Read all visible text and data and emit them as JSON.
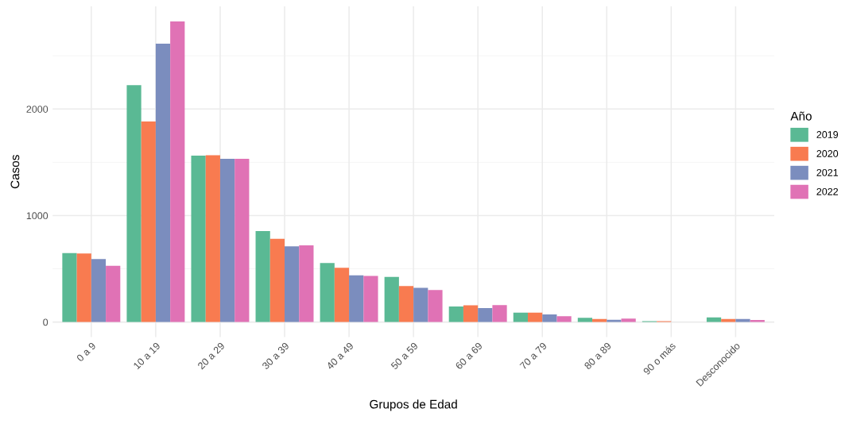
{
  "chart_data": {
    "type": "bar",
    "xlabel": "Grupos de Edad",
    "ylabel": "Casos",
    "legend_title": "Año",
    "categories": [
      "0 a 9",
      "10 a 19",
      "20 a 29",
      "30 a 39",
      "40 a 49",
      "50 a 59",
      "60 a 69",
      "70 a 79",
      "80 a 89",
      "90 o más",
      "Desconocido"
    ],
    "series": [
      {
        "name": "2019",
        "color": "#5ab994",
        "values": [
          648,
          2224,
          1562,
          854,
          554,
          423,
          146,
          89,
          40,
          9,
          44
        ]
      },
      {
        "name": "2020",
        "color": "#f87b50",
        "values": [
          643,
          1884,
          1567,
          782,
          510,
          339,
          157,
          89,
          29,
          8,
          29
        ]
      },
      {
        "name": "2021",
        "color": "#7b8dbe",
        "values": [
          592,
          2614,
          1533,
          710,
          438,
          322,
          132,
          72,
          22,
          null,
          29
        ]
      },
      {
        "name": "2022",
        "color": "#e072b5",
        "values": [
          529,
          2823,
          1533,
          720,
          433,
          300,
          160,
          55,
          33,
          null,
          19
        ]
      }
    ],
    "ylim": [
      -141,
      2964
    ],
    "yticks": [
      0,
      1000,
      2000
    ],
    "grid": true,
    "legend": "right"
  }
}
